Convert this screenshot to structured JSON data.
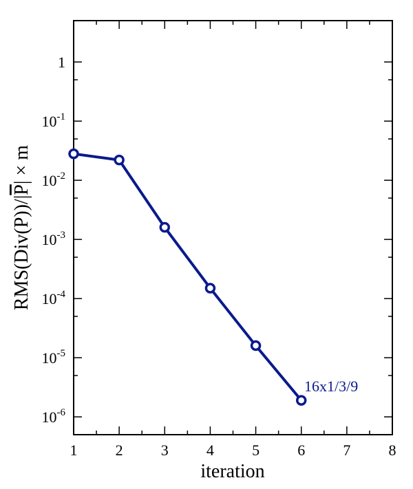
{
  "chart_data": {
    "type": "line",
    "x": [
      1,
      2,
      3,
      4,
      5,
      6
    ],
    "series": [
      {
        "values": [
          0.028,
          0.022,
          0.0016,
          0.00015,
          1.6e-05,
          1.9e-06
        ]
      }
    ],
    "xlabel": "iteration",
    "ylabel_main": "RMS(Div(P))/|",
    "ylabel_bar": "P",
    "ylabel_tail": "| × m",
    "xlim": [
      1,
      8
    ],
    "ylim": [
      5e-07,
      5
    ],
    "yscale": "log",
    "x_ticks": [
      "1",
      "2",
      "3",
      "4",
      "5",
      "6",
      "7",
      "8"
    ],
    "y_ticks": [
      {
        "value": 1e-06,
        "base": "10",
        "exp": "-6"
      },
      {
        "value": 1e-05,
        "base": "10",
        "exp": "-5"
      },
      {
        "value": 0.0001,
        "base": "10",
        "exp": "-4"
      },
      {
        "value": 0.001,
        "base": "10",
        "exp": "-3"
      },
      {
        "value": 0.01,
        "base": "10",
        "exp": "-2"
      },
      {
        "value": 0.1,
        "base": "10",
        "exp": "-1"
      },
      {
        "value": 1,
        "base": "1",
        "exp": ""
      }
    ],
    "annotation": "16x1/3/9",
    "grid": false,
    "series_color": "#0a1a8c"
  }
}
